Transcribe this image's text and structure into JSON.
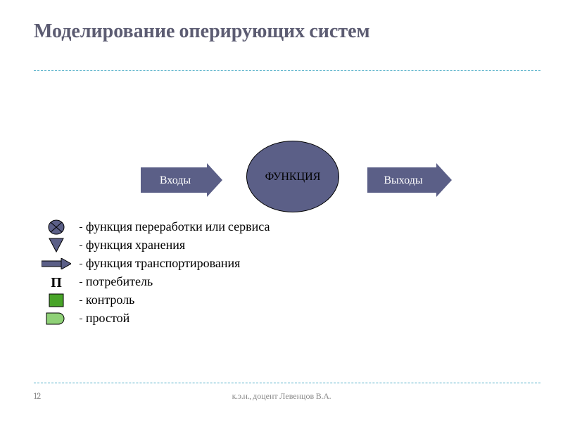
{
  "colors": {
    "title": "#5c5c72",
    "ruler": "#4bacc6",
    "accent": "#5b5f87",
    "accentDark": "#3e4160",
    "green": "#48a428",
    "greenLight": "#8fd177",
    "greyText": "#888888",
    "black": "#000000",
    "white": "#ffffff"
  },
  "title": "Моделирование оперирующих систем",
  "diagram": {
    "input_label": "Входы",
    "center_label": "ФУНКЦИЯ",
    "output_label": "Выходы"
  },
  "legend": [
    {
      "icon": "circle-x",
      "text": "- функция переработки или сервиса"
    },
    {
      "icon": "down-tri",
      "text": "- функция хранения"
    },
    {
      "icon": "small-arrow",
      "text": "- функция транспортирования"
    },
    {
      "icon": "letter-p",
      "text": "- потребитель"
    },
    {
      "icon": "green-square",
      "text": "- контроль"
    },
    {
      "icon": "green-cap",
      "text": "- простой"
    }
  ],
  "footer": {
    "page": "12",
    "author": "к.э.н., доцент Левенцов В.А."
  },
  "typography": {
    "title_fontsize": 28,
    "body_fontsize": 18,
    "footer_fontsize": 12,
    "font_family": "Cambria / serif"
  }
}
